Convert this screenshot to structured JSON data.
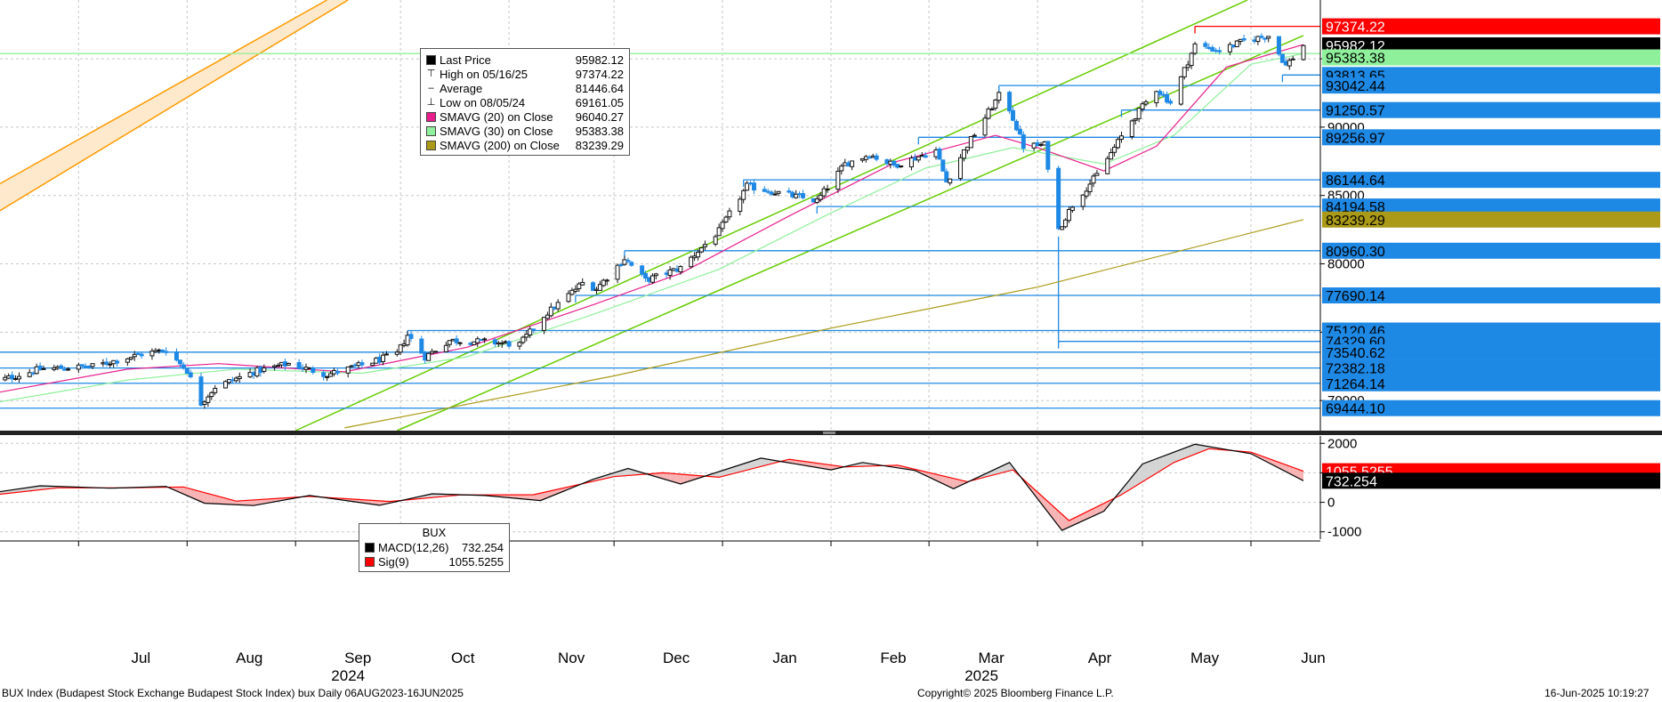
{
  "chart_data": {
    "type": "candlestick",
    "instrument": "BUX",
    "price_axis": {
      "range": [
        67800,
        99300
      ],
      "tick_labels": [
        "70000",
        "75000",
        "80000",
        "85000",
        "90000",
        "95000"
      ],
      "tick_values": [
        70000,
        75000,
        80000,
        85000,
        90000,
        95000
      ]
    },
    "time_axis": {
      "start": "2024-06-06",
      "end": "2025-06-16",
      "month_labels": [
        {
          "label": "Jul",
          "date": "2024-07-01"
        },
        {
          "label": "Aug",
          "date": "2024-08-01"
        },
        {
          "label": "Sep",
          "date": "2024-09-01"
        },
        {
          "label": "Oct",
          "date": "2024-10-01"
        },
        {
          "label": "Nov",
          "date": "2024-11-01"
        },
        {
          "label": "Dec",
          "date": "2024-12-01"
        },
        {
          "label": "Jan",
          "date": "2025-01-01"
        },
        {
          "label": "Feb",
          "date": "2025-02-01"
        },
        {
          "label": "Mar",
          "date": "2025-03-01"
        },
        {
          "label": "Apr",
          "date": "2025-04-01"
        },
        {
          "label": "May",
          "date": "2025-05-01"
        },
        {
          "label": "Jun",
          "date": "2025-06-01"
        }
      ],
      "year_labels": [
        {
          "label": "2024",
          "date": "2024-09-16"
        },
        {
          "label": "2025",
          "date": "2025-03-16"
        }
      ]
    },
    "price_path": [
      [
        "2024-06-06",
        71300
      ],
      [
        "2024-06-20",
        72300
      ],
      [
        "2024-07-05",
        72500
      ],
      [
        "2024-07-19",
        73400
      ],
      [
        "2024-07-26",
        73700
      ],
      [
        "2024-08-01",
        72200
      ],
      [
        "2024-08-05",
        69800
      ],
      [
        "2024-08-09",
        71000
      ],
      [
        "2024-08-20",
        72100
      ],
      [
        "2024-08-30",
        72700
      ],
      [
        "2024-09-10",
        71900
      ],
      [
        "2024-09-20",
        72600
      ],
      [
        "2024-09-30",
        73400
      ],
      [
        "2024-10-03",
        74800
      ],
      [
        "2024-10-08",
        73200
      ],
      [
        "2024-10-15",
        74400
      ],
      [
        "2024-10-25",
        74300
      ],
      [
        "2024-11-04",
        74100
      ],
      [
        "2024-11-11",
        76200
      ],
      [
        "2024-11-22",
        78600
      ],
      [
        "2024-11-26",
        78200
      ],
      [
        "2024-12-04",
        80400
      ],
      [
        "2024-12-10",
        78800
      ],
      [
        "2024-12-20",
        79700
      ],
      [
        "2024-12-31",
        82400
      ],
      [
        "2025-01-08",
        85700
      ],
      [
        "2025-01-15",
        85300
      ],
      [
        "2025-01-28",
        84600
      ],
      [
        "2025-02-05",
        87300
      ],
      [
        "2025-02-12",
        88000
      ],
      [
        "2025-02-19",
        87200
      ],
      [
        "2025-03-03",
        88300
      ],
      [
        "2025-03-06",
        86000
      ],
      [
        "2025-03-12",
        88700
      ],
      [
        "2025-03-22",
        92700
      ],
      [
        "2025-03-28",
        88600
      ],
      [
        "2025-04-03",
        88700
      ],
      [
        "2025-04-07",
        82500
      ],
      [
        "2025-04-11",
        84300
      ],
      [
        "2025-04-18",
        86500
      ],
      [
        "2025-04-28",
        90500
      ],
      [
        "2025-05-05",
        92800
      ],
      [
        "2025-05-09",
        91800
      ],
      [
        "2025-05-16",
        96000
      ],
      [
        "2025-05-23",
        95600
      ],
      [
        "2025-05-30",
        96300
      ],
      [
        "2025-06-06",
        96700
      ],
      [
        "2025-06-11",
        94500
      ],
      [
        "2025-06-16",
        95982.12
      ]
    ],
    "sma20_path": [
      [
        "2024-06-06",
        70500
      ],
      [
        "2024-07-15",
        72300
      ],
      [
        "2024-08-10",
        72700
      ],
      [
        "2024-09-15",
        72100
      ],
      [
        "2024-10-20",
        73900
      ],
      [
        "2024-11-25",
        77000
      ],
      [
        "2024-12-20",
        79300
      ],
      [
        "2025-01-20",
        83500
      ],
      [
        "2025-02-20",
        87500
      ],
      [
        "2025-03-20",
        89400
      ],
      [
        "2025-04-01",
        88500
      ],
      [
        "2025-04-20",
        86800
      ],
      [
        "2025-05-05",
        88600
      ],
      [
        "2025-05-25",
        94400
      ],
      [
        "2025-06-16",
        96040.27
      ]
    ],
    "sma30_path": [
      [
        "2024-06-06",
        69800
      ],
      [
        "2024-07-15",
        71500
      ],
      [
        "2024-08-15",
        72300
      ],
      [
        "2024-09-20",
        72000
      ],
      [
        "2024-10-20",
        73200
      ],
      [
        "2024-11-25",
        76300
      ],
      [
        "2024-12-31",
        79600
      ],
      [
        "2025-01-31",
        83600
      ],
      [
        "2025-02-28",
        87000
      ],
      [
        "2025-03-25",
        88500
      ],
      [
        "2025-04-20",
        87300
      ],
      [
        "2025-05-10",
        89400
      ],
      [
        "2025-06-01",
        94600
      ],
      [
        "2025-06-16",
        95383.38
      ]
    ],
    "sma200_path": [
      [
        "2024-09-15",
        68000
      ],
      [
        "2024-12-01",
        71800
      ],
      [
        "2025-02-01",
        75300
      ],
      [
        "2025-04-01",
        78300
      ],
      [
        "2025-06-16",
        83239.29
      ]
    ],
    "horizontal_levels": [
      {
        "value": 97374.22,
        "label": "97374.22",
        "color": "#ff0000",
        "from": "2025-05-16"
      },
      {
        "value": 95383.38,
        "label": "95383.38",
        "color": "#8ff09b"
      },
      {
        "value": 93813.65,
        "label": "93813.65",
        "color": "#1e88e5",
        "from": "2025-06-10"
      },
      {
        "value": 93042.44,
        "label": "93042.44",
        "color": "#1e88e5",
        "from": "2025-03-21"
      },
      {
        "value": 91250.57,
        "label": "91250.57",
        "color": "#1e88e5",
        "from": "2025-04-25"
      },
      {
        "value": 89256.97,
        "label": "89256.97",
        "color": "#1e88e5",
        "from": "2025-02-26"
      },
      {
        "value": 86144.64,
        "label": "86144.64",
        "color": "#1e88e5",
        "from": "2025-01-07"
      },
      {
        "value": 84194.58,
        "label": "84194.58",
        "color": "#1e88e5",
        "from": "2025-01-28"
      },
      {
        "value": 80960.3,
        "label": "80960.30",
        "color": "#1e88e5",
        "from": "2024-12-04"
      },
      {
        "value": 77690.14,
        "label": "77690.14",
        "color": "#1e88e5",
        "from": "2024-11-20"
      },
      {
        "value": 75120.46,
        "label": "75120.46",
        "color": "#1e88e5",
        "from": "2024-10-03"
      },
      {
        "value": 74329.6,
        "label": "74329.60",
        "color": "#1e88e5",
        "from": "2025-04-07"
      },
      {
        "value": 73540.62,
        "label": "73540.62",
        "color": "#1e88e5"
      },
      {
        "value": 72382.18,
        "label": "72382.18",
        "color": "#1e88e5"
      },
      {
        "value": 71264.14,
        "label": "71264.14",
        "color": "#1e88e5"
      },
      {
        "value": 69444.1,
        "label": "69444.10",
        "color": "#1e88e5"
      }
    ],
    "price_tags": [
      {
        "label": "97374.22",
        "value": 97374.22,
        "bg": "#ff0000",
        "fg": "#ffffff"
      },
      {
        "label": "95982.12",
        "value": 95982.12,
        "bg": "#000000",
        "fg": "#ffffff"
      },
      {
        "label": "95383.38",
        "value": 95100,
        "bg": "#8ff09b",
        "fg": "#000000"
      },
      {
        "label": "93813.65",
        "value": 93813.65,
        "bg": "#1e88e5",
        "fg": "#000000"
      },
      {
        "label": "93042.44",
        "value": 93042.44,
        "bg": "#1e88e5",
        "fg": "#000000"
      },
      {
        "label": "91250.57",
        "value": 91250.57,
        "bg": "#1e88e5",
        "fg": "#000000"
      },
      {
        "label": "89256.97",
        "value": 89256.97,
        "bg": "#1e88e5",
        "fg": "#000000"
      },
      {
        "label": "86144.64",
        "value": 86144.64,
        "bg": "#1e88e5",
        "fg": "#000000"
      },
      {
        "label": "84194.58",
        "value": 84194.58,
        "bg": "#1e88e5",
        "fg": "#000000"
      },
      {
        "label": "83239.29",
        "value": 83239.29,
        "bg": "#aa9a17",
        "fg": "#000000"
      },
      {
        "label": "80960.30",
        "value": 80960.3,
        "bg": "#1e88e5",
        "fg": "#000000"
      },
      {
        "label": "77690.14",
        "value": 77690.14,
        "bg": "#1e88e5",
        "fg": "#000000"
      },
      {
        "label": "75120.46",
        "value": 75120.46,
        "bg": "#1e88e5",
        "fg": "#000000"
      },
      {
        "label": "74329.60",
        "value": 74329.6,
        "bg": "#1e88e5",
        "fg": "#000000"
      },
      {
        "label": "73540.62",
        "value": 73540.62,
        "bg": "#1e88e5",
        "fg": "#000000"
      },
      {
        "label": "72382.18",
        "value": 72382.18,
        "bg": "#1e88e5",
        "fg": "#000000"
      },
      {
        "label": "71264.14",
        "value": 71264.14,
        "bg": "#1e88e5",
        "fg": "#000000"
      },
      {
        "label": "69444.10",
        "value": 69444.1,
        "bg": "#1e88e5",
        "fg": "#000000"
      }
    ],
    "trend_channels": [
      {
        "color": "#66cc00",
        "from": [
          "2024-09-01",
          67800
        ],
        "to": [
          "2025-05-31",
          99300
        ]
      },
      {
        "color": "#66cc00",
        "from": [
          "2024-09-30",
          67800
        ],
        "to": [
          "2025-06-16",
          96700
        ]
      }
    ],
    "orange_band": {
      "color": "#ff9a00",
      "fill": "#ffe9cc",
      "upper": [
        [
          "2024-06-06",
          85500
        ],
        [
          "2024-09-10",
          99300
        ]
      ],
      "lower": [
        [
          "2024-06-06",
          83500
        ],
        [
          "2024-09-16",
          99300
        ]
      ]
    },
    "macd_panel": {
      "range": [
        -1250,
        2250
      ],
      "tick_labels": [
        "2000",
        "1000",
        "0",
        "-1000"
      ],
      "tick_values": [
        2000,
        1000,
        0,
        -1000
      ],
      "macd_path": [
        [
          "2024-06-06",
          320
        ],
        [
          "2024-06-20",
          560
        ],
        [
          "2024-07-10",
          480
        ],
        [
          "2024-07-26",
          540
        ],
        [
          "2024-08-06",
          -30
        ],
        [
          "2024-08-20",
          -110
        ],
        [
          "2024-09-05",
          230
        ],
        [
          "2024-09-25",
          -100
        ],
        [
          "2024-10-10",
          290
        ],
        [
          "2024-10-25",
          230
        ],
        [
          "2024-11-10",
          60
        ],
        [
          "2024-11-25",
          780
        ],
        [
          "2024-12-05",
          1150
        ],
        [
          "2024-12-20",
          620
        ],
        [
          "2025-01-12",
          1500
        ],
        [
          "2025-02-01",
          1100
        ],
        [
          "2025-02-10",
          1350
        ],
        [
          "2025-02-25",
          1080
        ],
        [
          "2025-03-08",
          460
        ],
        [
          "2025-03-24",
          1350
        ],
        [
          "2025-04-08",
          -950
        ],
        [
          "2025-04-20",
          -300
        ],
        [
          "2025-05-01",
          1300
        ],
        [
          "2025-05-16",
          1970
        ],
        [
          "2025-06-01",
          1650
        ],
        [
          "2025-06-16",
          732.254
        ]
      ],
      "signal_path": [
        [
          "2024-06-06",
          240
        ],
        [
          "2024-06-25",
          490
        ],
        [
          "2024-07-15",
          490
        ],
        [
          "2024-07-31",
          520
        ],
        [
          "2024-08-15",
          40
        ],
        [
          "2024-09-05",
          200
        ],
        [
          "2024-09-28",
          30
        ],
        [
          "2024-10-18",
          250
        ],
        [
          "2024-11-08",
          260
        ],
        [
          "2024-12-01",
          870
        ],
        [
          "2024-12-15",
          1000
        ],
        [
          "2024-12-31",
          850
        ],
        [
          "2025-01-20",
          1460
        ],
        [
          "2025-02-05",
          1200
        ],
        [
          "2025-02-20",
          1260
        ],
        [
          "2025-03-12",
          700
        ],
        [
          "2025-03-25",
          1100
        ],
        [
          "2025-04-10",
          -620
        ],
        [
          "2025-04-25",
          260
        ],
        [
          "2025-05-10",
          1350
        ],
        [
          "2025-05-20",
          1820
        ],
        [
          "2025-06-01",
          1700
        ],
        [
          "2025-06-16",
          1055.5255
        ]
      ],
      "value_tags": [
        {
          "label": "1055.5255",
          "value": 1055.5255,
          "bg": "#ff0000",
          "fg": "#ffffff"
        },
        {
          "label": "732.254",
          "value": 732.254,
          "bg": "#000000",
          "fg": "#ffffff"
        }
      ]
    }
  },
  "legend_main": [
    {
      "name": "Last Price",
      "value": "95982.12",
      "color": "#000000",
      "glyph": "square"
    },
    {
      "name": "High on 05/16/25",
      "value": "97374.22",
      "color": "#000000",
      "glyph": "high"
    },
    {
      "name": "Average",
      "value": "81446.64",
      "color": "#000000",
      "glyph": "avg"
    },
    {
      "name": "Low on 08/05/24",
      "value": "69161.05",
      "color": "#000000",
      "glyph": "low"
    },
    {
      "name": "SMAVG (20)  on Close",
      "value": "96040.27",
      "color": "#e91e8c",
      "glyph": "square"
    },
    {
      "name": "SMAVG (30)  on Close",
      "value": "95383.38",
      "color": "#8ff09b",
      "glyph": "square"
    },
    {
      "name": "SMAVG (200)  on Close",
      "value": "83239.29",
      "color": "#aa9a17",
      "glyph": "square"
    }
  ],
  "legend_macd": {
    "title": "BUX",
    "items": [
      {
        "name": "MACD(12,26)",
        "value": "732.254",
        "color": "#000000"
      },
      {
        "name": "Sig(9)",
        "value": "1055.5255",
        "color": "#ff0000"
      }
    ]
  },
  "footer": {
    "left": "BUX Index (Budapest Stock Exchange Budapest Stock Index) bux  Daily 06AUG2023-16JUN2025",
    "center": "Copyright© 2025 Bloomberg Finance L.P.",
    "right": "16-Jun-2025 10:19:27"
  },
  "colors": {
    "up_candle": "#111111",
    "down_candle": "#1e88e5",
    "sma20": "#e91e8c",
    "sma30": "#8ff09b",
    "sma200": "#aa9a17",
    "macd_line": "#000000",
    "signal_line": "#ff0000"
  }
}
